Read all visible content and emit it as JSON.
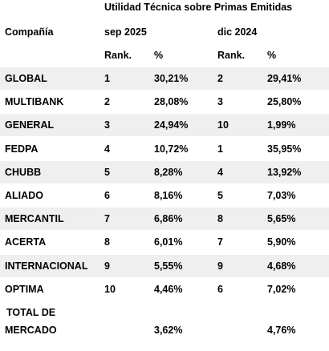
{
  "header": {
    "title": "Utilidad Técnica sobre Primas Emitidas",
    "company_label": "Compañía",
    "period1": "sep 2025",
    "period2": "dic 2024",
    "rank_label": "Rank.",
    "pct_label": "%"
  },
  "rows": [
    {
      "company": "GLOBAL",
      "rank1": "1",
      "pct1": "30,21%",
      "rank2": "2",
      "pct2": "29,41%"
    },
    {
      "company": "MULTIBANK",
      "rank1": "2",
      "pct1": "28,08%",
      "rank2": "3",
      "pct2": "25,80%"
    },
    {
      "company": "GENERAL",
      "rank1": "3",
      "pct1": "24,94%",
      "rank2": "10",
      "pct2": "1,99%"
    },
    {
      "company": "FEDPA",
      "rank1": "4",
      "pct1": "10,72%",
      "rank2": "1",
      "pct2": "35,95%"
    },
    {
      "company": "CHUBB",
      "rank1": "5",
      "pct1": "8,28%",
      "rank2": "4",
      "pct2": "13,92%"
    },
    {
      "company": "ALIADO",
      "rank1": "6",
      "pct1": "8,16%",
      "rank2": "5",
      "pct2": "7,03%"
    },
    {
      "company": "MERCANTIL",
      "rank1": "7",
      "pct1": "6,86%",
      "rank2": "8",
      "pct2": "5,65%"
    },
    {
      "company": "ACERTA",
      "rank1": "8",
      "pct1": "6,01%",
      "rank2": "7",
      "pct2": "5,90%"
    },
    {
      "company": "INTERNACIONAL",
      "rank1": "9",
      "pct1": "5,55%",
      "rank2": "9",
      "pct2": "4,68%"
    },
    {
      "company": "OPTIMA",
      "rank1": "10",
      "pct1": "4,46%",
      "rank2": "6",
      "pct2": "7,02%"
    }
  ],
  "total": {
    "label_line1": "TOTAL DE",
    "label_line2": "MERCADO",
    "pct1": "3,62%",
    "pct2": "4,76%"
  },
  "colors": {
    "band": "#efefef",
    "text": "#000000",
    "background": "#ffffff"
  }
}
